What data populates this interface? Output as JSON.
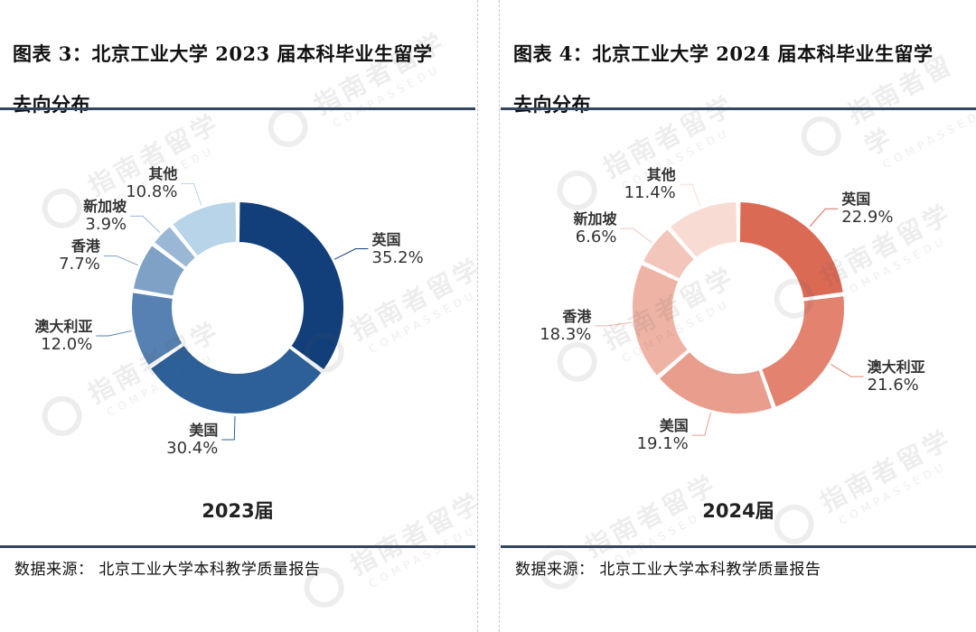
{
  "panels": [
    {
      "title_line1": "图表 3：北京工业大学 2023 届本科毕业生留学",
      "title_line2": "去向分布",
      "year_label": "2023届",
      "source": "数据来源：  北京工业大学本科教学质量报告"
    },
    {
      "title_line1": "图表 4：北京工业大学 2024 届本科毕业生留学",
      "title_line2": "去向分布",
      "year_label": "2024届",
      "source": "数据来源：  北京工业大学本科教学质量报告"
    }
  ],
  "watermark": {
    "cn": "指南者留学",
    "en": "COMPASSEDU"
  },
  "chart_data": [
    {
      "type": "pie",
      "subtype": "donut",
      "title": "2023届",
      "slices": [
        {
          "label": "英国",
          "value": 35.2,
          "display": "35.2%",
          "color": "#123f7a"
        },
        {
          "label": "美国",
          "value": 30.4,
          "display": "30.4%",
          "color": "#2d5f98"
        },
        {
          "label": "澳大利亚",
          "value": 12.0,
          "display": "12.0%",
          "color": "#5681b2"
        },
        {
          "label": "香港",
          "value": 7.7,
          "display": "7.7%",
          "color": "#7fa1c6"
        },
        {
          "label": "新加坡",
          "value": 3.9,
          "display": "3.9%",
          "color": "#9ab8d6"
        },
        {
          "label": "其他",
          "value": 10.8,
          "display": "10.8%",
          "color": "#b7d4e8"
        }
      ]
    },
    {
      "type": "pie",
      "subtype": "donut",
      "title": "2024届",
      "slices": [
        {
          "label": "英国",
          "value": 22.9,
          "display": "22.9%",
          "color": "#db6a55"
        },
        {
          "label": "澳大利亚",
          "value": 21.6,
          "display": "21.6%",
          "color": "#e2826f"
        },
        {
          "label": "美国",
          "value": 19.1,
          "display": "19.1%",
          "color": "#e99d8d"
        },
        {
          "label": "香港",
          "value": 18.3,
          "display": "18.3%",
          "color": "#efb3a6"
        },
        {
          "label": "新加坡",
          "value": 6.6,
          "display": "6.6%",
          "color": "#f3c6bb"
        },
        {
          "label": "其他",
          "value": 11.4,
          "display": "11.4%",
          "color": "#f8dcd3"
        }
      ]
    }
  ]
}
